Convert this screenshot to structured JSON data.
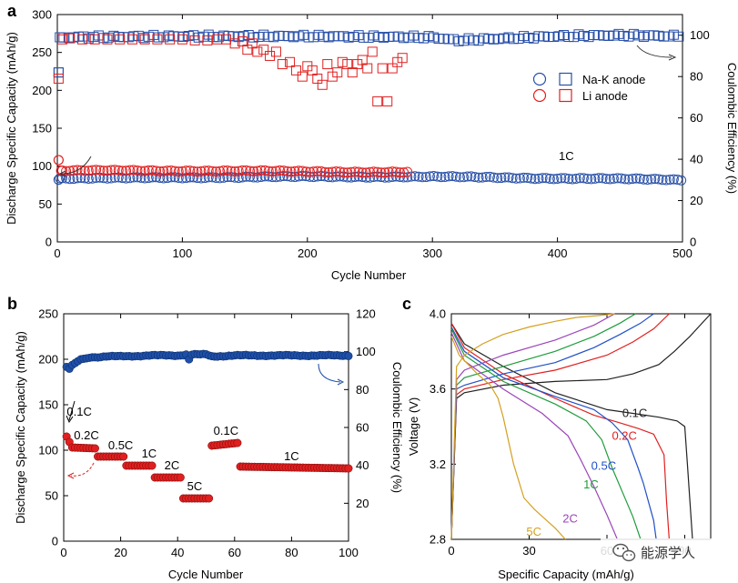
{
  "chart_data": [
    {
      "panel": "a",
      "type": "scatter",
      "xlabel": "Cycle Number",
      "ylabel": "Discharge Specific Capacity (mAh/g)",
      "y2label": "Coulombic Efficiency (%)",
      "xlim": [
        0,
        500
      ],
      "ylim": [
        0,
        300
      ],
      "y2lim": [
        0,
        110
      ],
      "xticks": [
        0,
        100,
        200,
        300,
        400,
        500
      ],
      "yticks": [
        0,
        50,
        100,
        150,
        200,
        250,
        300
      ],
      "y2ticks": [
        0,
        20,
        40,
        60,
        80,
        100
      ],
      "annotation": "1C",
      "legend": [
        "Na-K anode",
        "Li anode"
      ],
      "series": [
        {
          "name": "Na-K anode",
          "marker": "circle",
          "axis": "left",
          "color": "#2850a8",
          "x_range": [
            1,
            500
          ],
          "step": 3,
          "x": [
            1,
            2,
            3,
            50,
            100,
            200,
            300,
            400,
            500
          ],
          "y": [
            82,
            84,
            84,
            84,
            85,
            86,
            86,
            84,
            82
          ]
        },
        {
          "name": "Na-K anode",
          "marker": "square",
          "axis": "right",
          "color": "#2850a8",
          "x_range": [
            1,
            500
          ],
          "step": 4,
          "x": [
            1,
            2,
            100,
            200,
            300,
            320,
            400,
            450,
            500
          ],
          "y": [
            82,
            99,
            99.5,
            99.5,
            99,
            97.5,
            99.5,
            100,
            99.5
          ]
        },
        {
          "name": "Li anode",
          "marker": "circle",
          "axis": "left",
          "color": "#e02020",
          "x_range": [
            1,
            280
          ],
          "step": 3,
          "x": [
            1,
            3,
            100,
            200,
            280
          ],
          "y": [
            108,
            94,
            94,
            93,
            92
          ]
        },
        {
          "name": "Li anode",
          "marker": "square",
          "axis": "right",
          "color": "#e02020",
          "x": [
            1,
            4,
            10,
            20,
            30,
            40,
            50,
            60,
            70,
            80,
            90,
            100,
            110,
            120,
            128,
            135,
            142,
            148,
            152,
            156,
            160,
            165,
            170,
            175,
            180,
            186,
            191,
            196,
            200,
            204,
            208,
            212,
            216,
            220,
            224,
            228,
            232,
            236,
            240,
            244,
            248,
            252,
            256,
            260,
            264,
            268,
            272,
            276
          ],
          "y": [
            79,
            98,
            98.5,
            98,
            98,
            98,
            98,
            98,
            98,
            98,
            98,
            98,
            97.5,
            97.5,
            98,
            98,
            96,
            97,
            93,
            96,
            92,
            93,
            90,
            92,
            86,
            87,
            83,
            80,
            85,
            83,
            79,
            76,
            86,
            80,
            82,
            87,
            86,
            82,
            86,
            88,
            84,
            92,
            68,
            84,
            68,
            84,
            87,
            89
          ]
        }
      ]
    },
    {
      "panel": "b",
      "type": "scatter",
      "xlabel": "Cycle Number",
      "ylabel": "Discharge Specific Capacity (mAh/g)",
      "y2label": "Coulombic Efficiency (%)",
      "xlim": [
        0,
        100
      ],
      "ylim": [
        0,
        250
      ],
      "y2lim": [
        0,
        120
      ],
      "xticks": [
        0,
        20,
        40,
        60,
        80,
        100
      ],
      "yticks": [
        0,
        50,
        100,
        150,
        200,
        250
      ],
      "y2ticks": [
        20,
        40,
        60,
        80,
        100,
        120
      ],
      "series": [
        {
          "name": "Capacity",
          "axis": "left",
          "marker": "circle",
          "color": "#e02020",
          "segments": [
            {
              "label": "0.1C",
              "x": [
                1,
                2
              ],
              "y": [
                115,
                109
              ]
            },
            {
              "label": "0.2C",
              "x": [
                3,
                11
              ],
              "y": [
                103,
                102
              ]
            },
            {
              "label": "0.5C",
              "x": [
                12,
                21
              ],
              "y": [
                93,
                93
              ]
            },
            {
              "label": "1C",
              "x": [
                22,
                31
              ],
              "y": [
                83,
                83
              ]
            },
            {
              "label": "2C",
              "x": [
                32,
                41
              ],
              "y": [
                70,
                70
              ]
            },
            {
              "label": "5C",
              "x": [
                42,
                51
              ],
              "y": [
                47,
                47
              ]
            },
            {
              "label": "0.1C",
              "x": [
                52,
                61
              ],
              "y": [
                105,
                108
              ]
            },
            {
              "label": "1C",
              "x": [
                62,
                100
              ],
              "y": [
                82,
                80
              ]
            }
          ]
        },
        {
          "name": "Coulombic Efficiency",
          "axis": "right",
          "marker": "circle",
          "color": "#1e4fa8",
          "x": [
            1,
            2,
            3,
            4,
            5,
            6,
            8,
            10,
            15,
            20,
            30,
            40,
            43,
            44,
            45,
            50,
            52,
            60,
            70,
            80,
            90,
            100
          ],
          "y": [
            92,
            91,
            93,
            94,
            95,
            96,
            96.5,
            97,
            97.5,
            97.5,
            98,
            98,
            98.5,
            96,
            98.5,
            98.5,
            97.5,
            98,
            98,
            98,
            98,
            98
          ]
        }
      ]
    },
    {
      "panel": "c",
      "type": "line",
      "xlabel": "Specific Capacity (mAh/g)",
      "ylabel": "Voltage (V)",
      "xlim": [
        0,
        100
      ],
      "ylim": [
        2.8,
        4.0
      ],
      "xticks": [
        0,
        30,
        60,
        90
      ],
      "yticks": [
        2.8,
        3.2,
        3.6,
        4.0
      ],
      "series": [
        {
          "name": "0.1C",
          "color": "#222222",
          "discharge": {
            "x": [
              0,
              5,
              20,
              40,
              60,
              70,
              80,
              87,
              90,
              91,
              92,
              93
            ],
            "y": [
              3.95,
              3.84,
              3.72,
              3.58,
              3.49,
              3.47,
              3.45,
              3.43,
              3.4,
              3.2,
              3.0,
              2.8
            ]
          },
          "charge": {
            "x": [
              0,
              2,
              5,
              20,
              40,
              60,
              70,
              80,
              86,
              92,
              100
            ],
            "y": [
              2.8,
              3.55,
              3.58,
              3.62,
              3.64,
              3.65,
              3.68,
              3.73,
              3.8,
              3.88,
              4.0
            ]
          }
        },
        {
          "name": "0.2C",
          "color": "#e02020",
          "discharge": {
            "x": [
              0,
              5,
              20,
              40,
              55,
              65,
              72,
              78,
              82,
              83,
              84
            ],
            "y": [
              3.95,
              3.82,
              3.68,
              3.55,
              3.46,
              3.42,
              3.39,
              3.36,
              3.25,
              3.0,
              2.8
            ]
          },
          "charge": {
            "x": [
              0,
              2,
              5,
              20,
              40,
              60,
              70,
              78,
              84
            ],
            "y": [
              2.8,
              3.57,
              3.6,
              3.65,
              3.7,
              3.78,
              3.85,
              3.92,
              4.0
            ]
          }
        },
        {
          "name": "0.5C",
          "color": "#2050c8",
          "discharge": {
            "x": [
              0,
              5,
              20,
              40,
              55,
              62,
              68,
              72,
              74,
              76,
              78,
              79
            ],
            "y": [
              3.93,
              3.8,
              3.66,
              3.56,
              3.49,
              3.42,
              3.33,
              3.18,
              3.1,
              3.0,
              2.9,
              2.8
            ]
          },
          "charge": {
            "x": [
              0,
              2,
              5,
              20,
              40,
              55,
              65,
              73,
              78
            ],
            "y": [
              2.8,
              3.6,
              3.62,
              3.68,
              3.74,
              3.82,
              3.89,
              3.95,
              4.0
            ]
          }
        },
        {
          "name": "1C",
          "color": "#1e9c3c",
          "discharge": {
            "x": [
              0,
              5,
              20,
              40,
              52,
              58,
              62,
              66,
              70,
              73
            ],
            "y": [
              3.92,
              3.78,
              3.64,
              3.52,
              3.43,
              3.33,
              3.18,
              3.05,
              2.92,
              2.8
            ]
          },
          "charge": {
            "x": [
              0,
              2,
              5,
              20,
              40,
              55,
              65,
              71
            ],
            "y": [
              2.8,
              3.62,
              3.66,
              3.72,
              3.8,
              3.88,
              3.95,
              4.0
            ]
          }
        },
        {
          "name": "2C",
          "color": "#9b45b8",
          "discharge": {
            "x": [
              0,
              5,
              20,
              35,
              45,
              50,
              55,
              60,
              64
            ],
            "y": [
              3.9,
              3.75,
              3.6,
              3.47,
              3.35,
              3.22,
              3.08,
              2.93,
              2.8
            ]
          },
          "charge": {
            "x": [
              0,
              2,
              5,
              20,
              40,
              55,
              63
            ],
            "y": [
              2.8,
              3.65,
              3.7,
              3.78,
              3.86,
              3.94,
              4.0
            ]
          }
        },
        {
          "name": "5C",
          "color": "#d4a020",
          "discharge": {
            "x": [
              0,
              3,
              10,
              15,
              18,
              20,
              24,
              28,
              32,
              36,
              40,
              44
            ],
            "y": [
              3.88,
              3.78,
              3.68,
              3.62,
              3.55,
              3.45,
              3.2,
              3.02,
              2.96,
              2.91,
              2.86,
              2.8
            ]
          },
          "charge": {
            "x": [
              0,
              2,
              5,
              12,
              20,
              30,
              40,
              48,
              56,
              63
            ],
            "y": [
              2.8,
              3.72,
              3.78,
              3.84,
              3.89,
              3.93,
              3.96,
              3.98,
              3.99,
              4.0
            ]
          }
        }
      ]
    }
  ],
  "panels": {
    "a": {
      "letter": "a",
      "xlabel": "Cycle Number",
      "ylabel": "Discharge Specific Capacity (mAh/g)",
      "y2label": "Coulombic Efficiency (%)",
      "annotation": "1C",
      "legend": {
        "circle_label": "Na-K anode",
        "square_label": "Li anode",
        "na_label": "Na-K anode",
        "li_label": "Li anode"
      }
    },
    "b": {
      "letter": "b",
      "xlabel": "Cycle Number",
      "ylabel": "Discharge Specific Capacity (mAh/g)",
      "y2label": "Coulombic Efficiency (%)",
      "labels": [
        "0.1C",
        "0.2C",
        "0.5C",
        "1C",
        "2C",
        "5C",
        "0.1C",
        "1C"
      ]
    },
    "c": {
      "letter": "c",
      "xlabel": "Specific Capacity (mAh/g)",
      "ylabel": "Voltage (V)",
      "labels": [
        "0.1C",
        "0.2C",
        "0.5C",
        "1C",
        "2C",
        "5C"
      ]
    }
  },
  "watermark": {
    "text": "能源学人",
    "icon": "wechat-icon"
  },
  "colors": {
    "blue": "#2850a8",
    "red": "#e02020",
    "black": "#000000"
  }
}
